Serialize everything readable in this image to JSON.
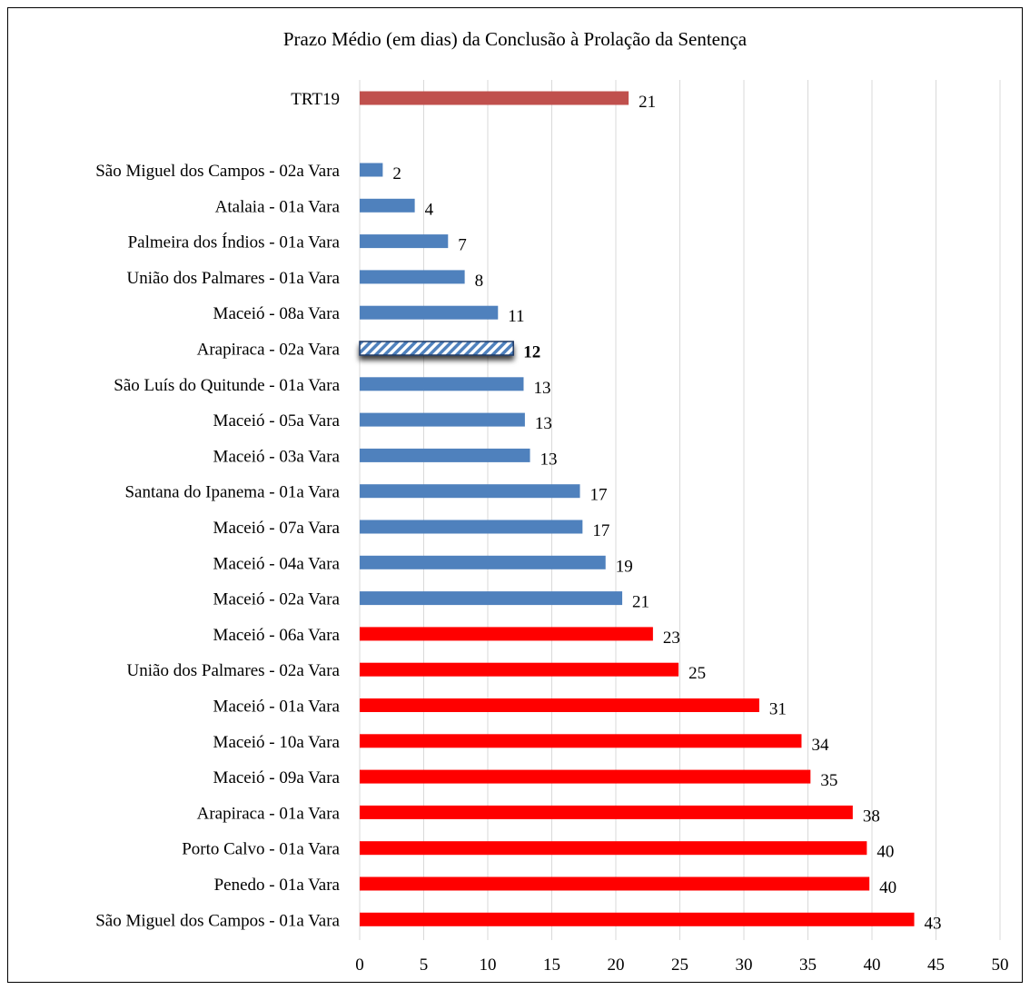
{
  "chart_data": {
    "type": "bar",
    "orientation": "horizontal",
    "title": "Prazo Médio (em dias) da Conclusão à Prolação da Sentença",
    "xlim": [
      0,
      50
    ],
    "x_ticks": [
      0,
      5,
      10,
      15,
      20,
      25,
      30,
      35,
      40,
      45,
      50
    ],
    "grid": "vertical",
    "colors": {
      "trt19": "#C0504D",
      "below_average": "#4F81BD",
      "above_average": "#FF0000",
      "highlight_hatch": "#4F81BD"
    },
    "bars": [
      {
        "category": "TRT19",
        "value": 21,
        "group": "trt19",
        "label": "21"
      },
      {
        "category": "São Miguel dos Campos  - 02a Vara",
        "value": 1.8,
        "group": "below_average",
        "label": "2"
      },
      {
        "category": "Atalaia  - 01a Vara",
        "value": 4.3,
        "group": "below_average",
        "label": "4"
      },
      {
        "category": "Palmeira dos Índios  - 01a Vara",
        "value": 6.9,
        "group": "below_average",
        "label": "7"
      },
      {
        "category": "União dos Palmares  - 01a Vara",
        "value": 8.2,
        "group": "below_average",
        "label": "8"
      },
      {
        "category": "Maceió  - 08a Vara",
        "value": 10.8,
        "group": "below_average",
        "label": "11"
      },
      {
        "category": "Arapiraca  - 02a Vara",
        "value": 12,
        "group": "highlight",
        "label": "12"
      },
      {
        "category": "São Luís do Quitunde  - 01a Vara",
        "value": 12.8,
        "group": "below_average",
        "label": "13"
      },
      {
        "category": "Maceió  - 05a Vara",
        "value": 12.9,
        "group": "below_average",
        "label": "13"
      },
      {
        "category": "Maceió  - 03a Vara",
        "value": 13.3,
        "group": "below_average",
        "label": "13"
      },
      {
        "category": "Santana do Ipanema  - 01a Vara",
        "value": 17.2,
        "group": "below_average",
        "label": "17"
      },
      {
        "category": "Maceió  - 07a Vara",
        "value": 17.4,
        "group": "below_average",
        "label": "17"
      },
      {
        "category": "Maceió  - 04a Vara",
        "value": 19.2,
        "group": "below_average",
        "label": "19"
      },
      {
        "category": "Maceió  - 02a Vara",
        "value": 20.5,
        "group": "below_average",
        "label": "21"
      },
      {
        "category": "Maceió  - 06a Vara",
        "value": 22.9,
        "group": "above_average",
        "label": "23"
      },
      {
        "category": "União dos Palmares  - 02a Vara",
        "value": 24.9,
        "group": "above_average",
        "label": "25"
      },
      {
        "category": "Maceió  - 01a Vara",
        "value": 31.2,
        "group": "above_average",
        "label": "31"
      },
      {
        "category": "Maceió  - 10a Vara",
        "value": 34.5,
        "group": "above_average",
        "label": "34"
      },
      {
        "category": "Maceió  - 09a Vara",
        "value": 35.2,
        "group": "above_average",
        "label": "35"
      },
      {
        "category": "Arapiraca  - 01a Vara",
        "value": 38.5,
        "group": "above_average",
        "label": "38"
      },
      {
        "category": "Porto Calvo  - 01a Vara",
        "value": 39.6,
        "group": "above_average",
        "label": "40"
      },
      {
        "category": "Penedo  - 01a Vara",
        "value": 39.8,
        "group": "above_average",
        "label": "40"
      },
      {
        "category": "São Miguel dos Campos  - 01a Vara",
        "value": 43.3,
        "group": "above_average",
        "label": "43"
      }
    ]
  }
}
